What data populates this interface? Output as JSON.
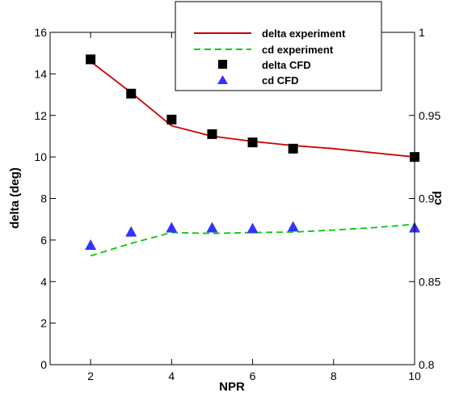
{
  "chart_data": {
    "type": "line",
    "xlabel": "NPR",
    "ylabel_left": "delta (deg)",
    "ylabel_right": "cd",
    "xlim": [
      1,
      10
    ],
    "ylim_left": [
      0,
      16
    ],
    "ylim_right": [
      0.8,
      1.0
    ],
    "xticks": [
      2,
      4,
      6,
      8,
      10
    ],
    "yticks_left": [
      0,
      2,
      4,
      6,
      8,
      10,
      12,
      14,
      16
    ],
    "yticks_right": [
      0.8,
      0.85,
      0.9,
      0.95,
      1
    ],
    "xtick_labels": [
      "2",
      "4",
      "6",
      "8",
      "10"
    ],
    "ytick_labels_left": [
      "0",
      "2",
      "4",
      "6",
      "8",
      "10",
      "12",
      "14",
      "16"
    ],
    "ytick_labels_right": [
      "0.8",
      "0.85",
      "0.9",
      "0.95",
      "1"
    ],
    "grid": false,
    "legend_position": "top-right",
    "series": [
      {
        "name": "delta experiment",
        "axis": "left",
        "style": "solid-line",
        "color": "#cc0000",
        "x": [
          2,
          3,
          4,
          5,
          6,
          7,
          8,
          9,
          10
        ],
        "y": [
          14.6,
          13.1,
          11.5,
          11.0,
          10.75,
          10.55,
          10.4,
          10.2,
          10.0
        ]
      },
      {
        "name": "cd experiment",
        "axis": "right",
        "style": "dashed-line",
        "color": "#00cc00",
        "x": [
          2,
          3,
          4,
          5,
          6,
          7,
          8,
          9,
          10
        ],
        "y": [
          0.8655,
          0.873,
          0.8795,
          0.879,
          0.8795,
          0.8798,
          0.881,
          0.8825,
          0.8845
        ]
      },
      {
        "name": "delta CFD",
        "axis": "left",
        "style": "square-marker",
        "color": "#000000",
        "x": [
          2,
          3,
          4,
          5,
          6,
          7,
          10
        ],
        "y": [
          14.7,
          13.05,
          11.8,
          11.1,
          10.7,
          10.4,
          10.0
        ]
      },
      {
        "name": "cd CFD",
        "axis": "right",
        "style": "triangle-marker",
        "color": "#3333ff",
        "x": [
          2,
          3,
          4,
          5,
          6,
          7,
          10
        ],
        "y": [
          0.872,
          0.88,
          0.8825,
          0.8825,
          0.882,
          0.883,
          0.8825
        ]
      }
    ]
  }
}
